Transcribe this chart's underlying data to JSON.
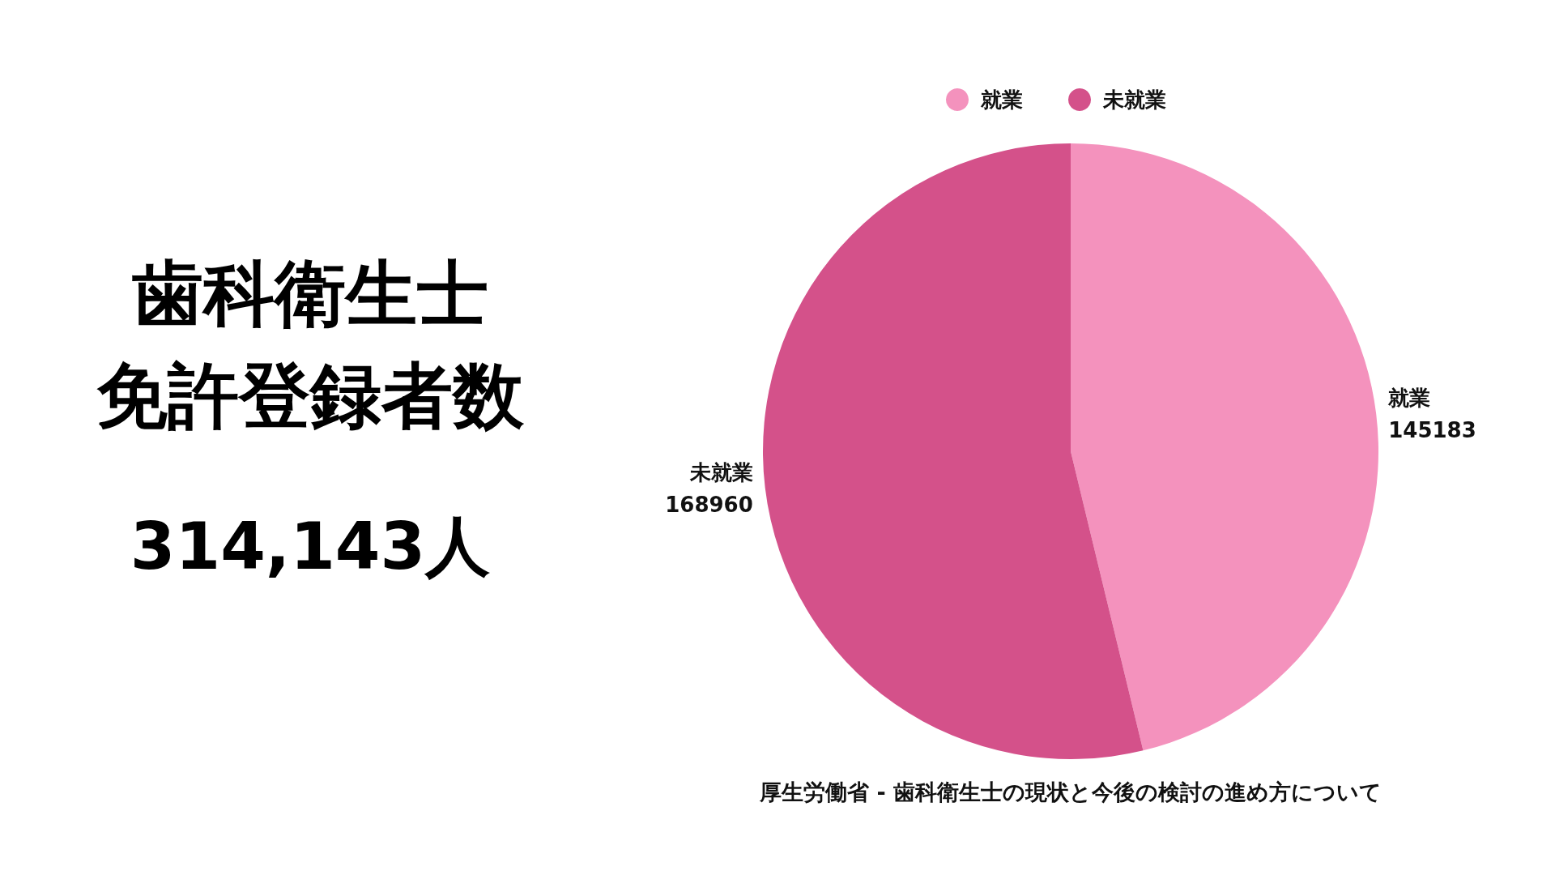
{
  "chart_data": {
    "type": "pie",
    "title": "歯科衛生士免許登録者数",
    "subtitle": "314,143人",
    "categories": [
      "就業",
      "未就業"
    ],
    "values": [
      145183,
      168960
    ],
    "colors": [
      "#f492bd",
      "#d4518a"
    ],
    "data_labels": true,
    "legend": "top",
    "annotations": [
      "厚生労働省 - 歯科衛生士の現状と今後の検討の進め方について"
    ]
  }
}
